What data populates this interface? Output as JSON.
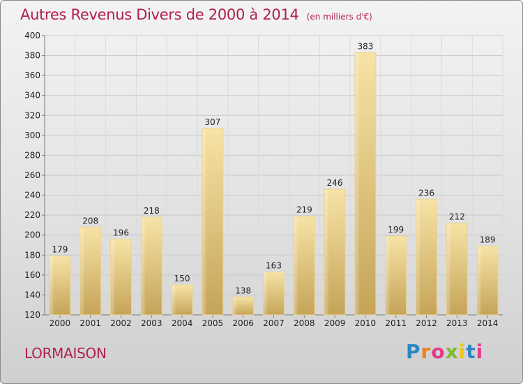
{
  "header": {
    "title": "Autres Revenus Divers de 2000 à 2014",
    "unit": "(en milliers d'€)"
  },
  "footer": {
    "commune": "LORMAISON",
    "brand": "Proxiti",
    "brand_colors": [
      "#2e86c1",
      "#f07f1a",
      "#e43a8b",
      "#7dbb2a",
      "#f0c419",
      "#2e86c1",
      "#e43a8b"
    ]
  },
  "colors": {
    "title": "#b0204a",
    "bar_light": "#f6e0a0",
    "bar_dark": "#c9a85c",
    "grid": "#c8c8c8"
  },
  "chart_data": {
    "type": "bar",
    "title": "Autres Revenus Divers de 2000 à 2014",
    "xlabel": "",
    "ylabel": "",
    "categories": [
      "2000",
      "2001",
      "2002",
      "2003",
      "2004",
      "2005",
      "2006",
      "2007",
      "2008",
      "2009",
      "2010",
      "2011",
      "2012",
      "2013",
      "2014"
    ],
    "values": [
      179,
      208,
      196,
      218,
      150,
      307,
      138,
      163,
      219,
      246,
      383,
      199,
      236,
      212,
      189
    ],
    "ylim": [
      120,
      400
    ],
    "yticks": [
      120,
      140,
      160,
      180,
      200,
      220,
      240,
      260,
      280,
      300,
      320,
      340,
      360,
      380,
      400
    ],
    "grid": true,
    "legend": "none"
  }
}
